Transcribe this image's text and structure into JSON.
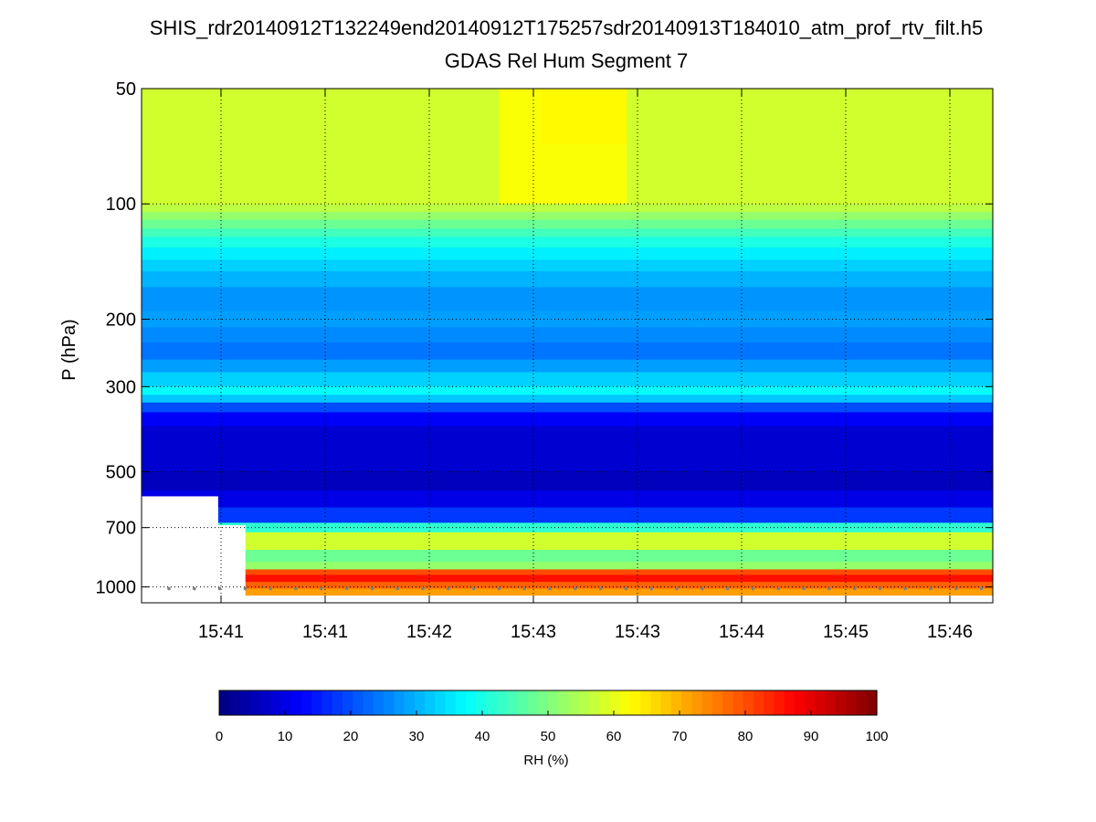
{
  "chart_data": {
    "type": "heatmap",
    "title": "SHIS_rdr20140912T132249end20140912T175257sdr20140913T184010_atm_prof_rtv_filt.h5",
    "subtitle": "GDAS Rel Hum Segment 7",
    "ylabel": "P (hPa)",
    "xlabel": "",
    "y_scale": "log",
    "y_reversed": true,
    "ylim": [
      50,
      1100
    ],
    "y_ticks": [
      50,
      100,
      200,
      300,
      500,
      700,
      1000
    ],
    "y_tick_labels": [
      "50",
      "100",
      "200",
      "300",
      "500",
      "700",
      "1000"
    ],
    "x_tick_labels": [
      "15:41",
      "15:41",
      "15:42",
      "15:43",
      "15:43",
      "15:44",
      "15:45",
      "15:46"
    ],
    "grid": true,
    "colorbar": {
      "label": "RH (%)",
      "min": 0,
      "max": 100,
      "ticks": [
        0,
        10,
        20,
        30,
        40,
        50,
        60,
        70,
        80,
        90,
        100
      ],
      "tick_labels": [
        "0",
        "10",
        "20",
        "30",
        "40",
        "50",
        "60",
        "70",
        "80",
        "90",
        "100"
      ],
      "colormap": "jet",
      "levels": 64
    },
    "profile": [
      {
        "p_top": 50,
        "p_bottom": 100,
        "rh": 58
      },
      {
        "p_top": 100,
        "p_bottom": 105,
        "rh": 56
      },
      {
        "p_top": 105,
        "p_bottom": 110,
        "rh": 52
      },
      {
        "p_top": 110,
        "p_bottom": 116,
        "rh": 48
      },
      {
        "p_top": 116,
        "p_bottom": 122,
        "rh": 44
      },
      {
        "p_top": 122,
        "p_bottom": 130,
        "rh": 40
      },
      {
        "p_top": 130,
        "p_bottom": 140,
        "rh": 36
      },
      {
        "p_top": 140,
        "p_bottom": 150,
        "rh": 33
      },
      {
        "p_top": 150,
        "p_bottom": 165,
        "rh": 30
      },
      {
        "p_top": 165,
        "p_bottom": 190,
        "rh": 27
      },
      {
        "p_top": 190,
        "p_bottom": 210,
        "rh": 28
      },
      {
        "p_top": 210,
        "p_bottom": 230,
        "rh": 26
      },
      {
        "p_top": 230,
        "p_bottom": 255,
        "rh": 24
      },
      {
        "p_top": 255,
        "p_bottom": 275,
        "rh": 28
      },
      {
        "p_top": 275,
        "p_bottom": 300,
        "rh": 33
      },
      {
        "p_top": 300,
        "p_bottom": 315,
        "rh": 38
      },
      {
        "p_top": 315,
        "p_bottom": 330,
        "rh": 32
      },
      {
        "p_top": 330,
        "p_bottom": 350,
        "rh": 20
      },
      {
        "p_top": 350,
        "p_bottom": 380,
        "rh": 12
      },
      {
        "p_top": 380,
        "p_bottom": 500,
        "rh": 8
      },
      {
        "p_top": 500,
        "p_bottom": 560,
        "rh": 6
      },
      {
        "p_top": 560,
        "p_bottom": 620,
        "rh": 10
      },
      {
        "p_top": 620,
        "p_bottom": 680,
        "rh": 18
      },
      {
        "p_top": 680,
        "p_bottom": 720,
        "rh": 42
      },
      {
        "p_top": 720,
        "p_bottom": 800,
        "rh": 58
      },
      {
        "p_top": 800,
        "p_bottom": 860,
        "rh": 48
      },
      {
        "p_top": 860,
        "p_bottom": 900,
        "rh": 52
      },
      {
        "p_top": 900,
        "p_bottom": 930,
        "rh": 80
      },
      {
        "p_top": 930,
        "p_bottom": 970,
        "rh": 86
      },
      {
        "p_top": 970,
        "p_bottom": 1010,
        "rh": 78
      },
      {
        "p_top": 1010,
        "p_bottom": 1050,
        "rh": 72
      }
    ],
    "upper_variation": [
      {
        "x_start": 0.42,
        "x_end": 0.57,
        "p_top": 50,
        "p_bottom": 100,
        "rh": 62
      },
      {
        "x_start": 0.47,
        "x_end": 0.57,
        "p_top": 50,
        "p_bottom": 70,
        "rh": 63
      }
    ],
    "surface_pressure_hpa": 1010,
    "missing_regions": [
      {
        "x_start": 0.0,
        "x_end": 0.09,
        "p_top": 580,
        "p_bottom": 1100
      },
      {
        "x_start": 0.09,
        "x_end": 0.122,
        "p_top": 690,
        "p_bottom": 1100
      }
    ]
  }
}
